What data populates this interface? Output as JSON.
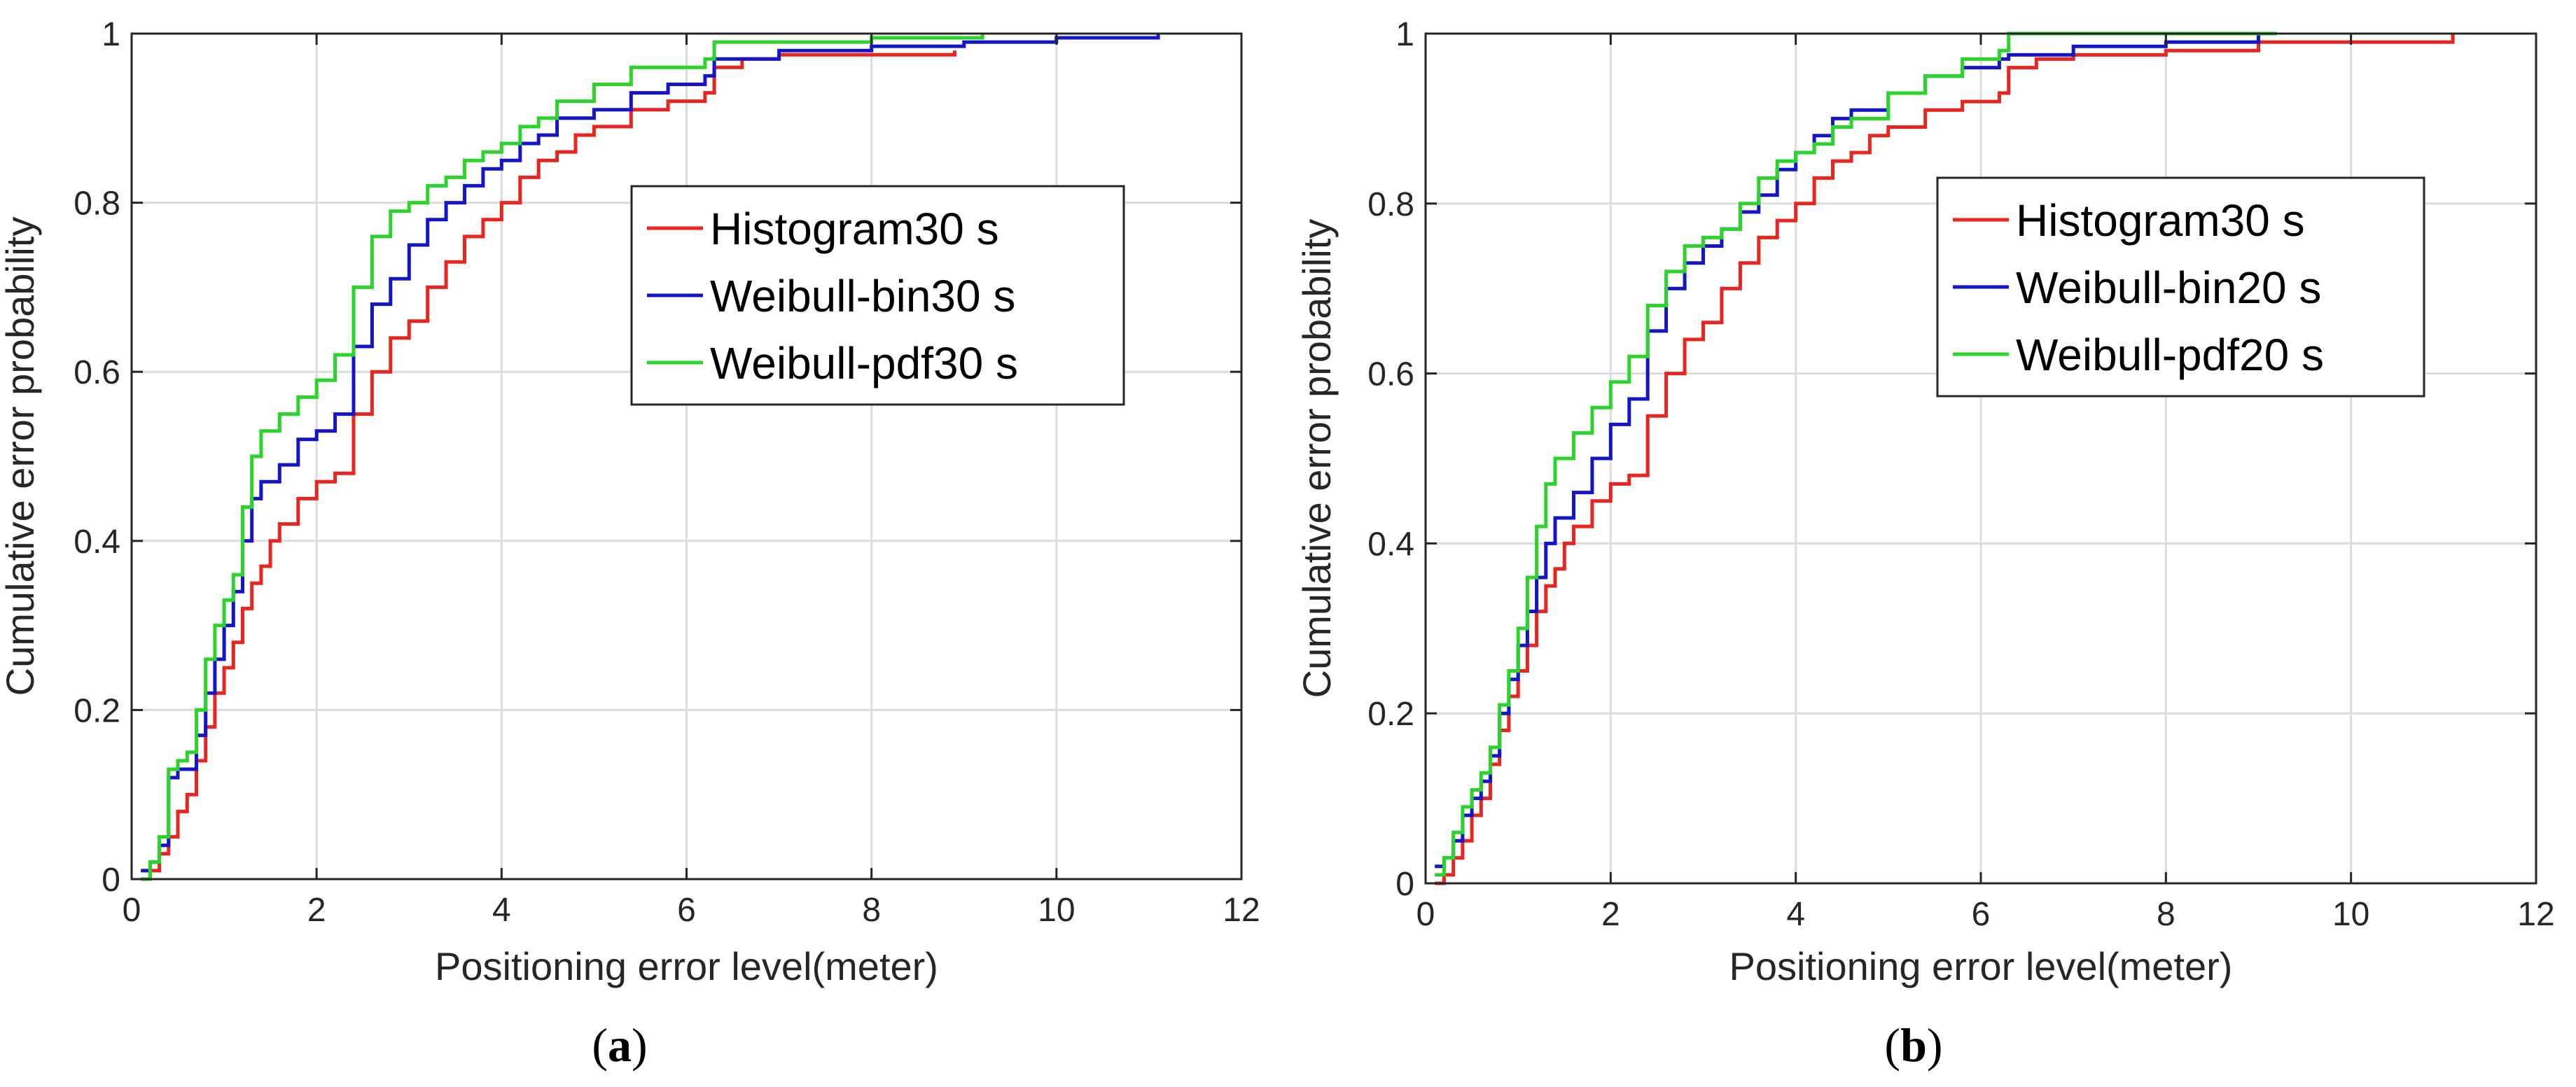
{
  "chart_data": [
    {
      "type": "line",
      "panel": "a",
      "caption": {
        "open": "(",
        "letter": "a",
        "close": ")"
      },
      "title": "",
      "xlabel": "Positioning error level(meter)",
      "ylabel": "Cumulative error probability",
      "xlim": [
        0,
        12
      ],
      "ylim": [
        0,
        1
      ],
      "xticks": [
        0,
        2,
        4,
        6,
        8,
        10,
        12
      ],
      "yticks": [
        0,
        0.2,
        0.4,
        0.6,
        0.8,
        1
      ],
      "xtick_labels": [
        "0",
        "2",
        "4",
        "6",
        "8",
        "10",
        "12"
      ],
      "ytick_labels": [
        "0",
        "0.2",
        "0.4",
        "0.6",
        "0.8",
        "1"
      ],
      "grid": true,
      "legend_position": "top-right",
      "series": [
        {
          "name": "Histogram30 s",
          "color": "#e8251f",
          "x": [
            0.1,
            0.2,
            0.3,
            0.4,
            0.5,
            0.6,
            0.7,
            0.8,
            0.9,
            1.0,
            1.1,
            1.2,
            1.3,
            1.4,
            1.5,
            1.6,
            1.8,
            2.0,
            2.2,
            2.4,
            2.6,
            2.8,
            3.0,
            3.2,
            3.4,
            3.6,
            3.8,
            4.0,
            4.2,
            4.4,
            4.6,
            4.8,
            5.0,
            5.4,
            5.8,
            6.2,
            6.3,
            6.6,
            7.0,
            8.0,
            8.9
          ],
          "y": [
            0.0,
            0.01,
            0.03,
            0.05,
            0.08,
            0.1,
            0.14,
            0.18,
            0.22,
            0.25,
            0.28,
            0.32,
            0.35,
            0.37,
            0.4,
            0.42,
            0.45,
            0.47,
            0.48,
            0.55,
            0.6,
            0.64,
            0.66,
            0.7,
            0.73,
            0.76,
            0.78,
            0.8,
            0.83,
            0.85,
            0.86,
            0.88,
            0.89,
            0.91,
            0.92,
            0.93,
            0.96,
            0.97,
            0.975,
            0.975,
            0.98
          ]
        },
        {
          "name": "Weibull-bin30 s",
          "color": "#1414c8",
          "x": [
            0.1,
            0.2,
            0.3,
            0.4,
            0.5,
            0.6,
            0.7,
            0.8,
            0.9,
            1.0,
            1.1,
            1.2,
            1.3,
            1.4,
            1.6,
            1.8,
            2.0,
            2.2,
            2.4,
            2.6,
            2.8,
            3.0,
            3.2,
            3.4,
            3.6,
            3.8,
            4.0,
            4.2,
            4.4,
            4.6,
            5.0,
            5.4,
            5.8,
            6.2,
            6.3,
            7.0,
            8.0,
            9.0,
            10.0,
            11.1
          ],
          "y": [
            0.01,
            0.02,
            0.04,
            0.12,
            0.13,
            0.13,
            0.17,
            0.22,
            0.26,
            0.3,
            0.34,
            0.4,
            0.45,
            0.47,
            0.49,
            0.52,
            0.53,
            0.55,
            0.63,
            0.68,
            0.71,
            0.75,
            0.78,
            0.8,
            0.82,
            0.84,
            0.85,
            0.87,
            0.88,
            0.9,
            0.91,
            0.93,
            0.94,
            0.95,
            0.97,
            0.98,
            0.985,
            0.99,
            0.995,
            1.0
          ]
        },
        {
          "name": "Weibull-pdf30 s",
          "color": "#2bd42b",
          "x": [
            0.1,
            0.2,
            0.3,
            0.4,
            0.5,
            0.6,
            0.7,
            0.8,
            0.9,
            1.0,
            1.1,
            1.2,
            1.3,
            1.4,
            1.6,
            1.8,
            2.0,
            2.2,
            2.4,
            2.6,
            2.8,
            3.0,
            3.2,
            3.4,
            3.6,
            3.8,
            4.0,
            4.2,
            4.4,
            4.6,
            5.0,
            5.4,
            5.8,
            6.2,
            6.3,
            7.0,
            8.0,
            9.2
          ],
          "y": [
            0.0,
            0.02,
            0.05,
            0.13,
            0.14,
            0.15,
            0.2,
            0.26,
            0.3,
            0.33,
            0.36,
            0.44,
            0.5,
            0.53,
            0.55,
            0.57,
            0.59,
            0.62,
            0.7,
            0.76,
            0.79,
            0.8,
            0.82,
            0.83,
            0.85,
            0.86,
            0.87,
            0.89,
            0.9,
            0.92,
            0.94,
            0.96,
            0.96,
            0.97,
            0.99,
            0.99,
            0.995,
            1.0
          ]
        }
      ]
    },
    {
      "type": "line",
      "panel": "b",
      "caption": {
        "open": "(",
        "letter": "b",
        "close": ")"
      },
      "title": "",
      "xlabel": "Positioning error level(meter)",
      "ylabel": "Cumulative error probability",
      "xlim": [
        0,
        12
      ],
      "ylim": [
        0,
        1
      ],
      "xticks": [
        0,
        2,
        4,
        6,
        8,
        10,
        12
      ],
      "yticks": [
        0,
        0.2,
        0.4,
        0.6,
        0.8,
        1
      ],
      "xtick_labels": [
        "0",
        "2",
        "4",
        "6",
        "8",
        "10",
        "12"
      ],
      "ytick_labels": [
        "0",
        "0.2",
        "0.4",
        "0.6",
        "0.8",
        "1"
      ],
      "grid": true,
      "legend_position": "top-right",
      "series": [
        {
          "name": "Histogram30 s",
          "color": "#e8251f",
          "x": [
            0.1,
            0.2,
            0.3,
            0.4,
            0.5,
            0.6,
            0.7,
            0.8,
            0.9,
            1.0,
            1.1,
            1.2,
            1.3,
            1.4,
            1.5,
            1.6,
            1.8,
            2.0,
            2.2,
            2.4,
            2.6,
            2.8,
            3.0,
            3.2,
            3.4,
            3.6,
            3.8,
            4.0,
            4.2,
            4.4,
            4.6,
            4.8,
            5.0,
            5.4,
            5.8,
            6.2,
            6.3,
            6.6,
            7.0,
            8.0,
            9.0,
            11.1
          ],
          "y": [
            0.0,
            0.01,
            0.03,
            0.05,
            0.08,
            0.1,
            0.14,
            0.18,
            0.22,
            0.25,
            0.28,
            0.32,
            0.35,
            0.37,
            0.4,
            0.42,
            0.45,
            0.47,
            0.48,
            0.55,
            0.6,
            0.64,
            0.66,
            0.7,
            0.73,
            0.76,
            0.78,
            0.8,
            0.83,
            0.85,
            0.86,
            0.88,
            0.89,
            0.91,
            0.92,
            0.93,
            0.96,
            0.97,
            0.975,
            0.98,
            0.99,
            1.0
          ]
        },
        {
          "name": "Weibull-bin20 s",
          "color": "#1414c8",
          "x": [
            0.1,
            0.2,
            0.3,
            0.4,
            0.5,
            0.6,
            0.7,
            0.8,
            0.9,
            1.0,
            1.1,
            1.2,
            1.3,
            1.4,
            1.6,
            1.8,
            2.0,
            2.2,
            2.4,
            2.6,
            2.8,
            3.0,
            3.2,
            3.4,
            3.6,
            3.8,
            4.0,
            4.2,
            4.4,
            4.6,
            5.0,
            5.4,
            5.8,
            6.2,
            6.3,
            7.0,
            8.0,
            9.0
          ],
          "y": [
            0.02,
            0.03,
            0.05,
            0.08,
            0.1,
            0.12,
            0.15,
            0.2,
            0.24,
            0.28,
            0.32,
            0.36,
            0.4,
            0.43,
            0.46,
            0.5,
            0.54,
            0.57,
            0.65,
            0.7,
            0.73,
            0.75,
            0.77,
            0.79,
            0.81,
            0.84,
            0.86,
            0.88,
            0.9,
            0.91,
            0.93,
            0.95,
            0.96,
            0.97,
            0.975,
            0.985,
            0.99,
            1.0
          ]
        },
        {
          "name": "Weibull-pdf20 s",
          "color": "#2bd42b",
          "x": [
            0.1,
            0.2,
            0.3,
            0.4,
            0.5,
            0.6,
            0.7,
            0.8,
            0.9,
            1.0,
            1.1,
            1.2,
            1.3,
            1.4,
            1.6,
            1.8,
            2.0,
            2.2,
            2.4,
            2.6,
            2.8,
            3.0,
            3.2,
            3.4,
            3.6,
            3.8,
            4.0,
            4.2,
            4.4,
            4.6,
            5.0,
            5.4,
            5.8,
            6.2,
            6.3,
            7.0,
            8.0,
            9.2
          ],
          "y": [
            0.01,
            0.03,
            0.06,
            0.09,
            0.11,
            0.13,
            0.16,
            0.21,
            0.25,
            0.3,
            0.36,
            0.42,
            0.47,
            0.5,
            0.53,
            0.56,
            0.59,
            0.62,
            0.68,
            0.72,
            0.75,
            0.76,
            0.77,
            0.8,
            0.83,
            0.85,
            0.86,
            0.87,
            0.89,
            0.9,
            0.93,
            0.95,
            0.97,
            0.98,
            1.0,
            1.0,
            1.0,
            1.0
          ]
        }
      ]
    }
  ]
}
